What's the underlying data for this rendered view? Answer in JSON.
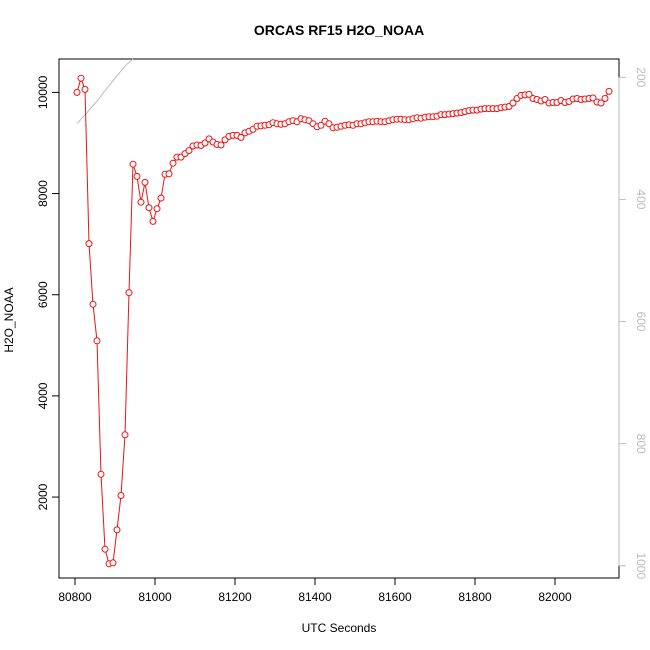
{
  "chart_data": {
    "type": "line",
    "title": "ORCAS RF15 H2O_NOAA",
    "xlabel": "UTC Seconds",
    "ylabel": "H2O_NOAA",
    "xlim": [
      80760,
      82160
    ],
    "ylim": [
      400,
      10660
    ],
    "x_ticks": [
      80800,
      81000,
      81200,
      81400,
      81600,
      81800,
      82000
    ],
    "y_ticks": [
      2000,
      4000,
      6000,
      8000,
      10000
    ],
    "y2_ticks": [
      200,
      400,
      600,
      800,
      1000
    ],
    "y2_lim": [
      1020,
      170
    ],
    "colors": {
      "series": "#ee1111",
      "secondary": "#bbbbbb",
      "axis": "#000000"
    },
    "series": [
      {
        "x": [
          80805,
          80815,
          80825,
          80835,
          80845,
          80855,
          80865,
          80875,
          80885,
          80895,
          80905,
          80915,
          80925,
          80935,
          80945,
          80955,
          80965,
          80975,
          80985,
          80995,
          81005,
          81015,
          81025,
          81035,
          81045,
          81055,
          81065,
          81075,
          81085,
          81095,
          81105,
          81115,
          81125,
          81135,
          81145,
          81155,
          81165,
          81175,
          81185,
          81195,
          81205,
          81215,
          81225,
          81235,
          81245,
          81255,
          81265,
          81275,
          81285,
          81295,
          81305,
          81315,
          81325,
          81335,
          81345,
          81355,
          81365,
          81375,
          81385,
          81395,
          81405,
          81415,
          81425,
          81435,
          81445,
          81455,
          81465,
          81475,
          81485,
          81495,
          81505,
          81515,
          81525,
          81535,
          81545,
          81555,
          81565,
          81575,
          81585,
          81595,
          81605,
          81615,
          81625,
          81635,
          81645,
          81655,
          81665,
          81675,
          81685,
          81695,
          81705,
          81715,
          81725,
          81735,
          81745,
          81755,
          81765,
          81775,
          81785,
          81795,
          81805,
          81815,
          81825,
          81835,
          81845,
          81855,
          81865,
          81875,
          81885,
          81895,
          81905,
          81915,
          81925,
          81935,
          81945,
          81955,
          81965,
          81975,
          81985,
          81995,
          82005,
          82015,
          82025,
          82035,
          82045,
          82055,
          82065,
          82075,
          82085,
          82095,
          82105,
          82115,
          82125,
          82135
        ],
        "values": [
          10000,
          10280,
          10060,
          7010,
          5810,
          5090,
          2450,
          970,
          680,
          700,
          1350,
          2030,
          3230,
          6040,
          8580,
          8340,
          7830,
          8220,
          7720,
          7450,
          7700,
          7910,
          8380,
          8390,
          8600,
          8720,
          8720,
          8790,
          8850,
          8940,
          8960,
          8950,
          9000,
          9080,
          9020,
          8970,
          8960,
          9060,
          9130,
          9150,
          9150,
          9110,
          9200,
          9230,
          9270,
          9330,
          9340,
          9350,
          9360,
          9400,
          9380,
          9370,
          9380,
          9420,
          9440,
          9420,
          9480,
          9460,
          9440,
          9380,
          9320,
          9350,
          9430,
          9380,
          9300,
          9310,
          9330,
          9350,
          9360,
          9350,
          9380,
          9380,
          9400,
          9420,
          9420,
          9430,
          9420,
          9420,
          9440,
          9460,
          9470,
          9470,
          9460,
          9460,
          9480,
          9500,
          9490,
          9510,
          9520,
          9520,
          9530,
          9560,
          9560,
          9570,
          9580,
          9590,
          9600,
          9620,
          9640,
          9650,
          9650,
          9670,
          9680,
          9680,
          9680,
          9680,
          9700,
          9710,
          9720,
          9790,
          9880,
          9940,
          9950,
          9960,
          9880,
          9860,
          9830,
          9860,
          9790,
          9800,
          9800,
          9840,
          9800,
          9820,
          9870,
          9880,
          9860,
          9870,
          9880,
          9890,
          9810,
          9790,
          9880,
          10020
        ]
      }
    ],
    "secondary_line": {
      "x": [
        80805,
        80830,
        80855,
        80880,
        80905,
        80930,
        80945
      ],
      "values": [
        9380,
        9600,
        9830,
        10080,
        10330,
        10560,
        10660
      ]
    }
  }
}
